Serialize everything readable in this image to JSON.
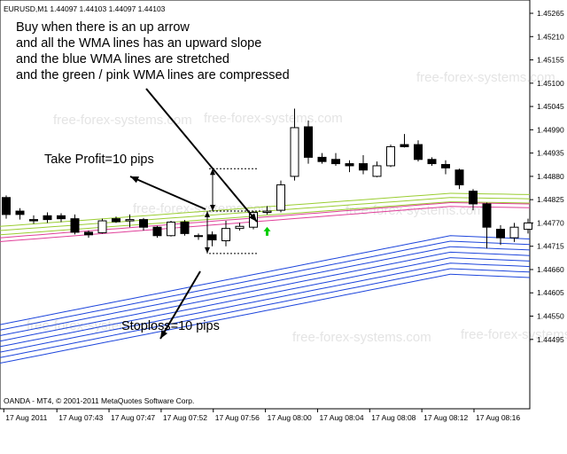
{
  "chart_data": {
    "type": "candlestick",
    "symbol_header": "EURUSD,M1  1.44097 1.44103 1.44097 1.44103",
    "footer": "OANDA - MT4, © 2001-2011 MetaQuotes Software Corp.",
    "ylim": [
      1.44415,
      1.45265
    ],
    "y_ticks": [
      "1.45265",
      "1.45210",
      "1.45155",
      "1.45100",
      "1.45045",
      "1.44990",
      "1.44935",
      "1.44880",
      "1.44825",
      "1.44770",
      "1.44715",
      "1.44660",
      "1.44605",
      "1.44550",
      "1.44495"
    ],
    "x_ticks": [
      "17 Aug 2011",
      "17 Aug 07:43",
      "17 Aug 07:47",
      "17 Aug 07:52",
      "17 Aug 07:56",
      "17 Aug 08:00",
      "17 Aug 08:04",
      "17 Aug 08:08",
      "17 Aug 08:12",
      "17 Aug 08:16"
    ],
    "candles": [
      {
        "o": 1.4483,
        "h": 1.44835,
        "l": 1.4478,
        "c": 1.4479
      },
      {
        "o": 1.44798,
        "h": 1.44805,
        "l": 1.44778,
        "c": 1.4479
      },
      {
        "o": 1.44778,
        "h": 1.44788,
        "l": 1.44768,
        "c": 1.44775
      },
      {
        "o": 1.44787,
        "h": 1.44795,
        "l": 1.4477,
        "c": 1.44778
      },
      {
        "o": 1.44787,
        "h": 1.44793,
        "l": 1.44772,
        "c": 1.4478
      },
      {
        "o": 1.4478,
        "h": 1.4479,
        "l": 1.44743,
        "c": 1.44748
      },
      {
        "o": 1.44748,
        "h": 1.44752,
        "l": 1.44735,
        "c": 1.44742
      },
      {
        "o": 1.44747,
        "h": 1.4478,
        "l": 1.44745,
        "c": 1.44775
      },
      {
        "o": 1.4478,
        "h": 1.44785,
        "l": 1.4477,
        "c": 1.44773
      },
      {
        "o": 1.44775,
        "h": 1.4479,
        "l": 1.4476,
        "c": 1.44778
      },
      {
        "o": 1.44778,
        "h": 1.44782,
        "l": 1.44752,
        "c": 1.4476
      },
      {
        "o": 1.4476,
        "h": 1.44763,
        "l": 1.44735,
        "c": 1.4474
      },
      {
        "o": 1.4474,
        "h": 1.44775,
        "l": 1.44738,
        "c": 1.44772
      },
      {
        "o": 1.44772,
        "h": 1.44777,
        "l": 1.4474,
        "c": 1.44745
      },
      {
        "o": 1.4474,
        "h": 1.44745,
        "l": 1.4473,
        "c": 1.44738
      },
      {
        "o": 1.44742,
        "h": 1.4475,
        "l": 1.44715,
        "c": 1.4473
      },
      {
        "o": 1.44728,
        "h": 1.44775,
        "l": 1.44715,
        "c": 1.44757
      },
      {
        "o": 1.44757,
        "h": 1.4477,
        "l": 1.44752,
        "c": 1.44762
      },
      {
        "o": 1.4476,
        "h": 1.44798,
        "l": 1.44755,
        "c": 1.44795
      },
      {
        "o": 1.44795,
        "h": 1.4481,
        "l": 1.4479,
        "c": 1.44798
      },
      {
        "o": 1.448,
        "h": 1.4487,
        "l": 1.44795,
        "c": 1.4486
      },
      {
        "o": 1.4488,
        "h": 1.4504,
        "l": 1.4487,
        "c": 1.44995
      },
      {
        "o": 1.44997,
        "h": 1.45012,
        "l": 1.4491,
        "c": 1.44925
      },
      {
        "o": 1.44925,
        "h": 1.44935,
        "l": 1.4491,
        "c": 1.44915
      },
      {
        "o": 1.4492,
        "h": 1.44935,
        "l": 1.44905,
        "c": 1.4491
      },
      {
        "o": 1.4491,
        "h": 1.44918,
        "l": 1.4489,
        "c": 1.44905
      },
      {
        "o": 1.4491,
        "h": 1.4493,
        "l": 1.44885,
        "c": 1.44895
      },
      {
        "o": 1.4488,
        "h": 1.44915,
        "l": 1.44878,
        "c": 1.44905
      },
      {
        "o": 1.44905,
        "h": 1.44955,
        "l": 1.44902,
        "c": 1.4495
      },
      {
        "o": 1.44955,
        "h": 1.4498,
        "l": 1.44948,
        "c": 1.4495
      },
      {
        "o": 1.44955,
        "h": 1.44965,
        "l": 1.44915,
        "c": 1.4492
      },
      {
        "o": 1.4492,
        "h": 1.44925,
        "l": 1.44905,
        "c": 1.4491
      },
      {
        "o": 1.44908,
        "h": 1.44918,
        "l": 1.44885,
        "c": 1.449
      },
      {
        "o": 1.44895,
        "h": 1.44898,
        "l": 1.4485,
        "c": 1.4486
      },
      {
        "o": 1.44845,
        "h": 1.4485,
        "l": 1.448,
        "c": 1.44815
      },
      {
        "o": 1.44815,
        "h": 1.44818,
        "l": 1.4471,
        "c": 1.4476
      },
      {
        "o": 1.44755,
        "h": 1.44765,
        "l": 1.44718,
        "c": 1.44735
      },
      {
        "o": 1.44735,
        "h": 1.4477,
        "l": 1.44725,
        "c": 1.4476
      },
      {
        "o": 1.44755,
        "h": 1.4478,
        "l": 1.44745,
        "c": 1.4477
      }
    ],
    "wma_bands": [
      {
        "name": "green/yellow group",
        "color": "#9acd32",
        "start": 1.44762,
        "end": 1.4484,
        "count": 3,
        "spacing": 0.0001
      },
      {
        "name": "pink group",
        "color": "#e0409a",
        "start": 1.44735,
        "end": 1.44818,
        "count": 2,
        "spacing": 9e-05
      },
      {
        "name": "blue group",
        "color": "#1e46dc",
        "start": 1.4453,
        "end": 1.4474,
        "count": 8,
        "spacing": 0.00013
      }
    ],
    "up_arrow_candle_index": 19,
    "grid": false,
    "watermark": "free-forex-systems.com"
  },
  "annotations": {
    "notes": [
      "Buy when there is an up arrow",
      "and all the WMA lines has an upward slope",
      "and the blue WMA lines are stretched",
      "and the green / pink WMA lines are compressed"
    ],
    "take_profit": "Take Profit=10 pips",
    "stoploss": "Stoploss=10 pips"
  },
  "colors": {
    "candle_bull": "#ffffff",
    "candle_bear": "#000000",
    "arrow": "#00cc00",
    "annotation": "#000000"
  }
}
